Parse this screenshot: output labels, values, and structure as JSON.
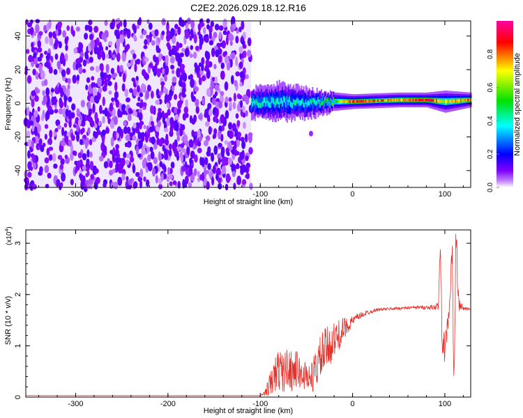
{
  "chart_data": [
    {
      "type": "heatmap",
      "title": "C2E2.2026.029.18.12.R16",
      "xlabel": "Height of straight line (km)",
      "ylabel": "Frequency (Hz)",
      "xlim": [
        -354,
        128
      ],
      "ylim": [
        -50,
        49
      ],
      "xticks": [
        -300,
        -200,
        -100,
        0,
        100
      ],
      "yticks": [
        -40,
        -20,
        0,
        20,
        40
      ],
      "colorbar": {
        "label": "Normalized spectral amplitude",
        "range": [
          0,
          1
        ],
        "ticks": [
          "0.0",
          "0.2",
          "0.4",
          "0.6",
          "0.8"
        ],
        "colors": [
          "#ffffff",
          "#8000ff",
          "#0000ff",
          "#00ffff",
          "#00ff00",
          "#ffff00",
          "#ff0000",
          "#ff00a0"
        ]
      },
      "regions": [
        {
          "name": "broadband noise",
          "x_range": [
            -354,
            -110
          ],
          "freq_range": [
            -50,
            49
          ],
          "amplitude": 0.1
        },
        {
          "name": "signal ridge",
          "x_range": [
            -110,
            128
          ],
          "freq_center": 0,
          "ridge": [
            {
              "x": -110,
              "f": 0,
              "width": 8,
              "amp": 0.45
            },
            {
              "x": -80,
              "f": 1,
              "width": 10,
              "amp": 0.4
            },
            {
              "x": -50,
              "f": 0,
              "width": 8,
              "amp": 0.4
            },
            {
              "x": -20,
              "f": 1,
              "width": 5,
              "amp": 0.55
            },
            {
              "x": 0,
              "f": 1,
              "width": 4,
              "amp": 0.85
            },
            {
              "x": 50,
              "f": 2,
              "width": 4,
              "amp": 0.75
            },
            {
              "x": 80,
              "f": 2,
              "width": 4,
              "amp": 0.9
            },
            {
              "x": 100,
              "f": 1,
              "width": 6,
              "amp": 0.7
            },
            {
              "x": 128,
              "f": 2,
              "width": 4,
              "amp": 0.8
            }
          ]
        }
      ]
    },
    {
      "type": "line",
      "title": "",
      "xlabel": "Height of straight line (km)",
      "ylabel": "SNR (10 * v/v)",
      "y_multiplier": "(x10",
      "y_multiplier_exp": "4",
      "xlim": [
        -354,
        128
      ],
      "ylim": [
        0,
        3.26
      ],
      "xticks": [
        -300,
        -200,
        -100,
        0,
        100
      ],
      "yticks": [
        0,
        1,
        2,
        3
      ],
      "series": [
        {
          "name": "SNR",
          "color": "#e8302a",
          "x": [
            -354,
            -300,
            -250,
            -200,
            -150,
            -105,
            -100,
            -95,
            -90,
            -85,
            -80,
            -75,
            -70,
            -65,
            -60,
            -55,
            -50,
            -45,
            -40,
            -35,
            -30,
            -25,
            -20,
            -15,
            -10,
            -5,
            0,
            5,
            10,
            15,
            20,
            25,
            30,
            40,
            50,
            60,
            70,
            80,
            90,
            93,
            95,
            97,
            100,
            105,
            108,
            110,
            112,
            115,
            120,
            128
          ],
          "y": [
            0.02,
            0.02,
            0.02,
            0.02,
            0.02,
            0.02,
            0.03,
            0.08,
            0.2,
            0.4,
            0.55,
            0.45,
            0.6,
            0.5,
            0.55,
            0.4,
            0.45,
            0.35,
            0.55,
            0.75,
            0.9,
            1.0,
            1.1,
            1.2,
            1.3,
            1.4,
            1.48,
            1.55,
            1.6,
            1.64,
            1.67,
            1.7,
            1.71,
            1.72,
            1.73,
            1.74,
            1.75,
            1.75,
            1.75,
            1.8,
            2.9,
            1.2,
            0.9,
            1.75,
            2.8,
            0.1,
            3.2,
            1.8,
            1.73,
            1.72
          ],
          "noise": [
            0,
            0,
            0,
            0,
            0,
            0,
            0,
            0.05,
            0.25,
            0.35,
            0.4,
            0.4,
            0.4,
            0.4,
            0.35,
            0.3,
            0.3,
            0.3,
            0.4,
            0.45,
            0.45,
            0.4,
            0.35,
            0.3,
            0.25,
            0.15,
            0.1,
            0.08,
            0.06,
            0.05,
            0.04,
            0.03,
            0.03,
            0.03,
            0.03,
            0.03,
            0.03,
            0.04,
            0.05,
            0.1,
            0.2,
            0.3,
            0.3,
            0.15,
            0.4,
            0.5,
            0.4,
            0.15,
            0.04,
            0.02
          ]
        }
      ]
    }
  ]
}
